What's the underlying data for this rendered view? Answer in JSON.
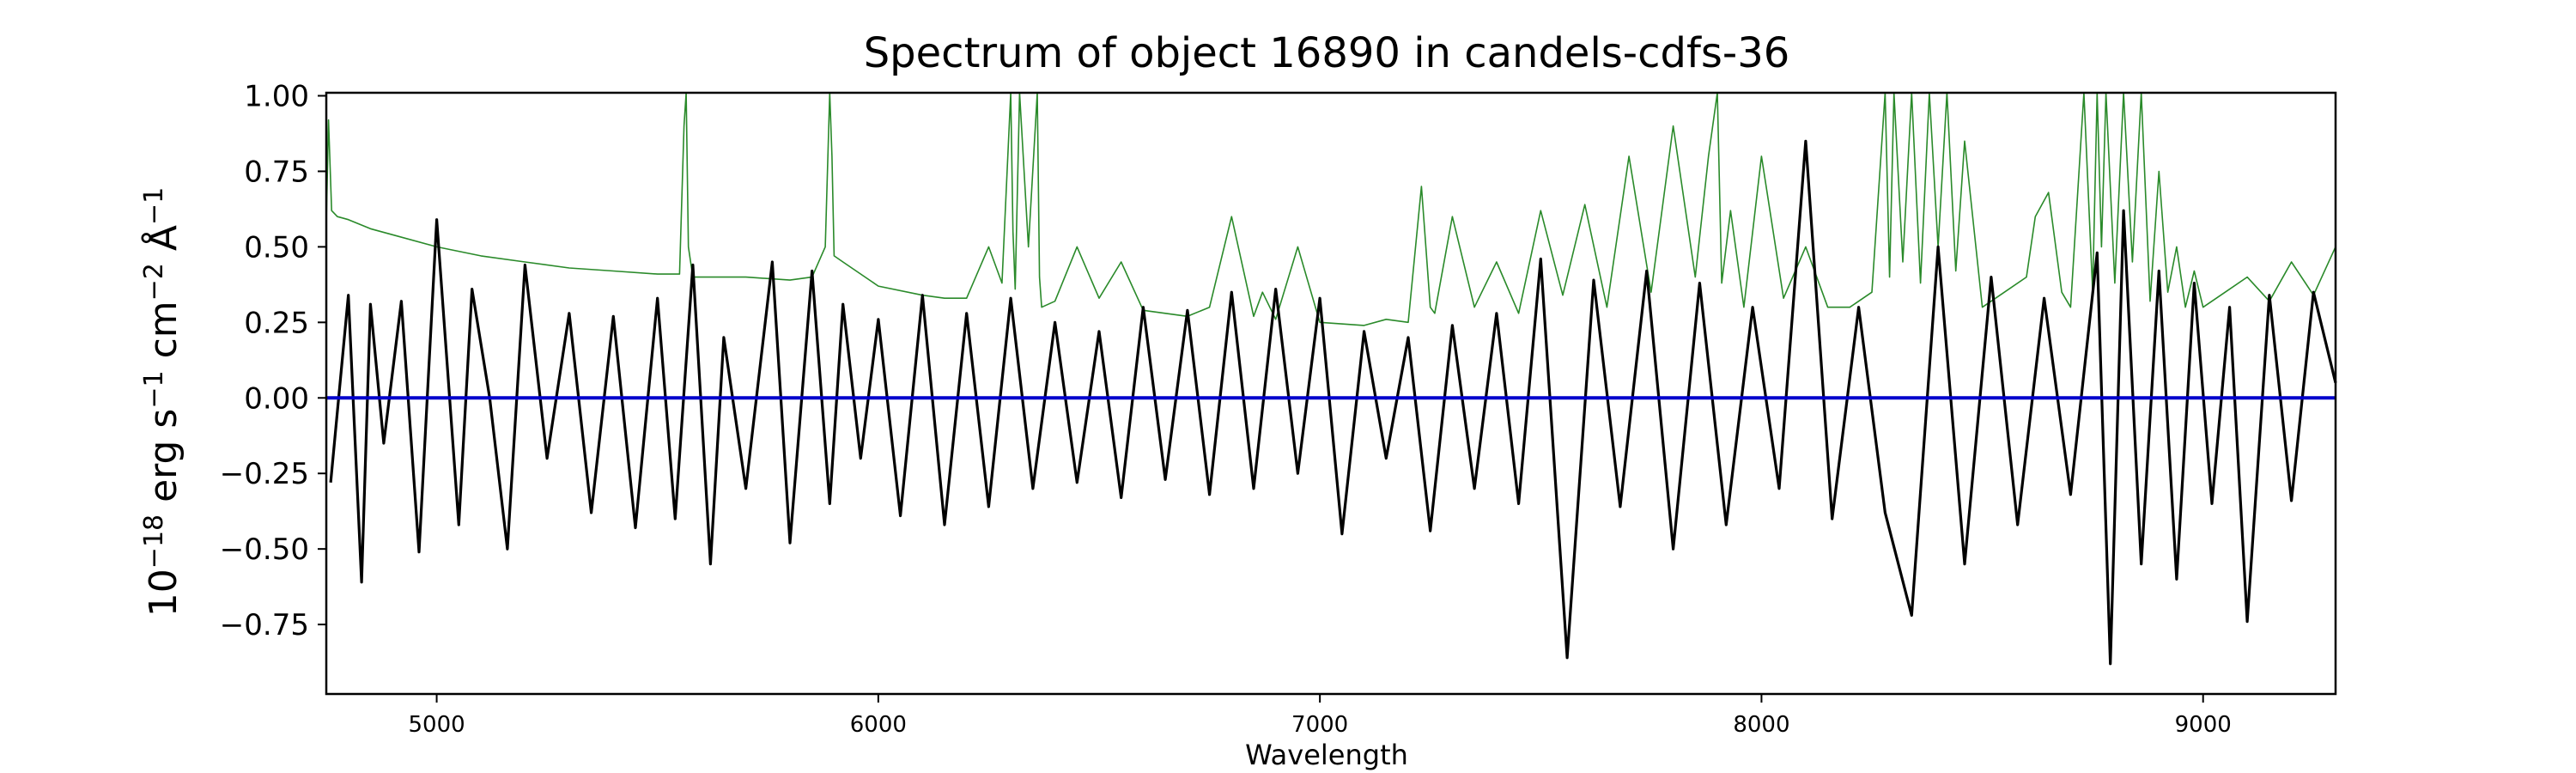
{
  "chart_data": {
    "type": "line",
    "title": "Spectrum of object 16890 in candels-cdfs-36",
    "xlabel": "Wavelength",
    "ylabel_parts": {
      "base": "10",
      "exp": "−18",
      "unit1": " erg s",
      "exp1": "−1",
      "unit2": " cm",
      "exp2": "−2",
      "unit3": " Å",
      "exp3": "−1"
    },
    "xlim": [
      4750,
      9300
    ],
    "ylim": [
      -0.98,
      1.01
    ],
    "xticks": [
      5000,
      6000,
      7000,
      8000,
      9000
    ],
    "xtick_labels": [
      "5000",
      "6000",
      "7000",
      "8000",
      "9000"
    ],
    "yticks": [
      -0.75,
      -0.5,
      -0.25,
      0.0,
      0.25,
      0.5,
      0.75,
      1.0
    ],
    "ytick_labels": [
      "−0.75",
      "−0.50",
      "−0.25",
      "0.00",
      "0.25",
      "0.50",
      "0.75",
      "1.00"
    ],
    "grid": false,
    "colors": {
      "flux": "#000000",
      "error": "#2a8a2a",
      "zero": "#0000cc"
    },
    "series": [
      {
        "role": "flux",
        "x": [
          4760,
          4800,
          4830,
          4850,
          4880,
          4920,
          4960,
          5000,
          5050,
          5080,
          5120,
          5160,
          5200,
          5250,
          5300,
          5350,
          5400,
          5450,
          5500,
          5540,
          5580,
          5620,
          5650,
          5700,
          5760,
          5800,
          5850,
          5890,
          5920,
          5960,
          6000,
          6050,
          6100,
          6150,
          6200,
          6250,
          6300,
          6350,
          6400,
          6450,
          6500,
          6550,
          6600,
          6650,
          6700,
          6750,
          6800,
          6850,
          6900,
          6950,
          7000,
          7050,
          7100,
          7150,
          7200,
          7250,
          7300,
          7350,
          7400,
          7450,
          7500,
          7560,
          7620,
          7680,
          7740,
          7800,
          7860,
          7920,
          7980,
          8040,
          8100,
          8160,
          8220,
          8280,
          8340,
          8400,
          8460,
          8520,
          8580,
          8640,
          8700,
          8760,
          8790,
          8820,
          8860,
          8900,
          8940,
          8980,
          9020,
          9060,
          9100,
          9150,
          9200,
          9250,
          9300
        ],
        "y": [
          -0.28,
          0.34,
          -0.61,
          0.31,
          -0.15,
          0.32,
          -0.51,
          0.59,
          -0.42,
          0.36,
          0.0,
          -0.5,
          0.44,
          -0.2,
          0.28,
          -0.38,
          0.27,
          -0.43,
          0.33,
          -0.4,
          0.44,
          -0.55,
          0.2,
          -0.3,
          0.45,
          -0.48,
          0.42,
          -0.35,
          0.31,
          -0.2,
          0.26,
          -0.39,
          0.34,
          -0.42,
          0.28,
          -0.36,
          0.33,
          -0.3,
          0.25,
          -0.28,
          0.22,
          -0.33,
          0.3,
          -0.27,
          0.29,
          -0.32,
          0.35,
          -0.3,
          0.36,
          -0.25,
          0.33,
          -0.45,
          0.22,
          -0.2,
          0.2,
          -0.44,
          0.24,
          -0.3,
          0.28,
          -0.35,
          0.46,
          -0.86,
          0.39,
          -0.36,
          0.42,
          -0.5,
          0.38,
          -0.42,
          0.3,
          -0.3,
          0.85,
          -0.4,
          0.3,
          -0.38,
          -0.72,
          0.5,
          -0.55,
          0.4,
          -0.42,
          0.33,
          -0.32,
          0.48,
          -0.88,
          0.62,
          -0.55,
          0.42,
          -0.6,
          0.38,
          -0.35,
          0.3,
          -0.74,
          0.34,
          -0.34,
          0.35,
          0.05
        ]
      },
      {
        "role": "error",
        "x": [
          4750,
          4755,
          4762,
          4775,
          4800,
          4850,
          4900,
          5000,
          5100,
          5200,
          5300,
          5400,
          5500,
          5550,
          5560,
          5565,
          5570,
          5580,
          5600,
          5700,
          5800,
          5850,
          5880,
          5890,
          5895,
          5900,
          5920,
          6000,
          6100,
          6150,
          6200,
          6250,
          6280,
          6300,
          6305,
          6310,
          6320,
          6340,
          6360,
          6365,
          6370,
          6400,
          6450,
          6500,
          6550,
          6600,
          6650,
          6700,
          6750,
          6800,
          6850,
          6870,
          6900,
          6950,
          7000,
          7100,
          7150,
          7200,
          7230,
          7250,
          7260,
          7300,
          7350,
          7400,
          7450,
          7500,
          7550,
          7600,
          7650,
          7700,
          7750,
          7800,
          7850,
          7880,
          7900,
          7910,
          7930,
          7960,
          8000,
          8050,
          8100,
          8150,
          8200,
          8250,
          8280,
          8290,
          8300,
          8320,
          8340,
          8360,
          8380,
          8400,
          8420,
          8440,
          8460,
          8500,
          8550,
          8600,
          8620,
          8650,
          8680,
          8700,
          8730,
          8750,
          8760,
          8770,
          8780,
          8800,
          8820,
          8840,
          8860,
          8880,
          8900,
          8920,
          8940,
          8960,
          8980,
          9000,
          9050,
          9100,
          9150,
          9200,
          9250,
          9300
        ],
        "y": [
          0.58,
          0.92,
          0.62,
          0.6,
          0.59,
          0.56,
          0.54,
          0.5,
          0.47,
          0.45,
          0.43,
          0.42,
          0.41,
          0.41,
          0.9,
          1.01,
          0.5,
          0.4,
          0.4,
          0.4,
          0.39,
          0.4,
          0.5,
          1.01,
          0.8,
          0.47,
          0.45,
          0.37,
          0.34,
          0.33,
          0.33,
          0.5,
          0.38,
          1.01,
          0.55,
          0.36,
          1.01,
          0.5,
          1.01,
          0.4,
          0.3,
          0.32,
          0.5,
          0.33,
          0.45,
          0.29,
          0.28,
          0.27,
          0.3,
          0.6,
          0.27,
          0.35,
          0.26,
          0.5,
          0.25,
          0.24,
          0.26,
          0.25,
          0.7,
          0.3,
          0.28,
          0.6,
          0.3,
          0.45,
          0.28,
          0.62,
          0.34,
          0.64,
          0.3,
          0.8,
          0.35,
          0.9,
          0.4,
          0.8,
          1.01,
          0.38,
          0.62,
          0.3,
          0.8,
          0.33,
          0.5,
          0.3,
          0.3,
          0.35,
          1.01,
          0.4,
          1.01,
          0.45,
          1.01,
          0.38,
          1.01,
          0.5,
          1.01,
          0.42,
          0.85,
          0.3,
          0.35,
          0.4,
          0.6,
          0.68,
          0.35,
          0.3,
          1.01,
          0.35,
          1.01,
          0.5,
          1.01,
          0.38,
          1.01,
          0.45,
          1.01,
          0.32,
          0.75,
          0.35,
          0.5,
          0.3,
          0.42,
          0.3,
          0.35,
          0.4,
          0.32,
          0.45,
          0.34,
          0.5
        ]
      },
      {
        "role": "zero",
        "x": [
          4750,
          9300
        ],
        "y": [
          0.0,
          0.0
        ]
      }
    ]
  }
}
